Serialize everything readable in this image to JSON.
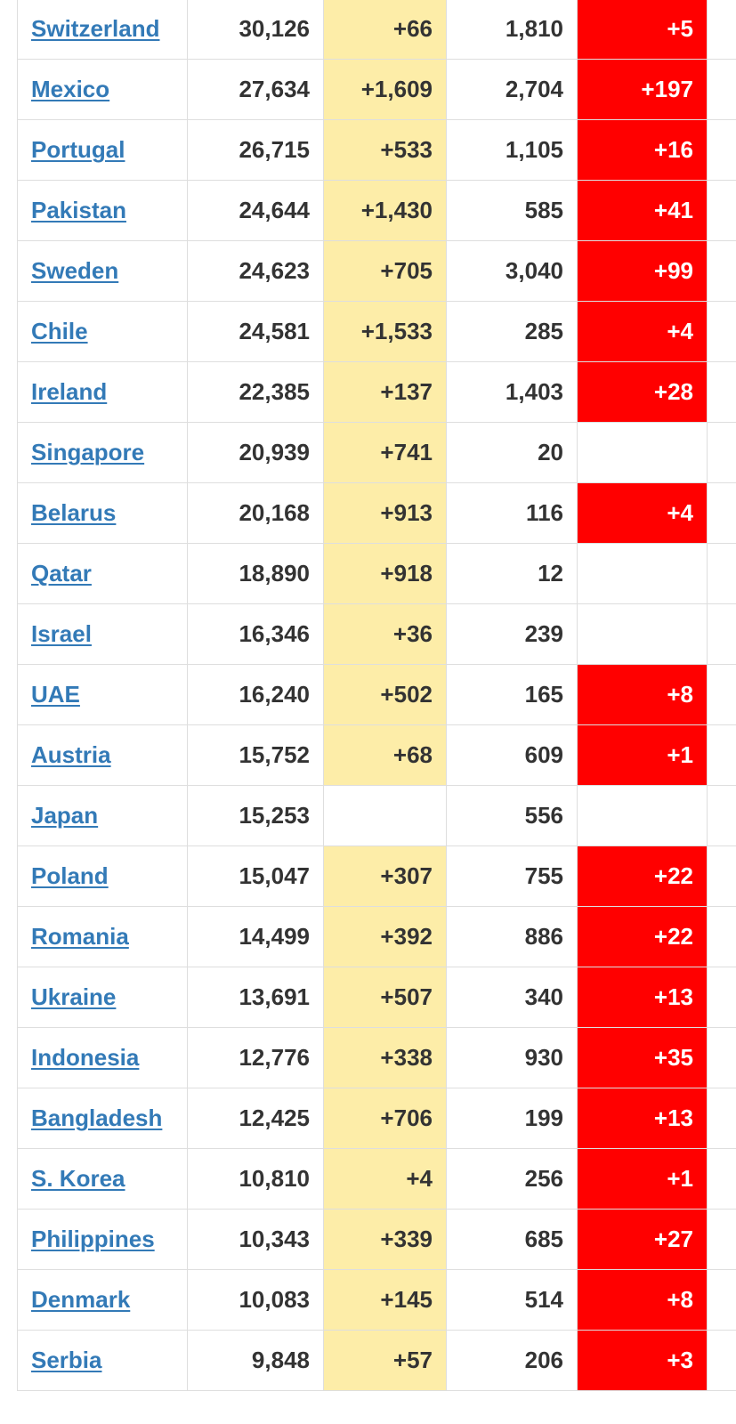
{
  "colors": {
    "link": "#337ab7",
    "text": "#333333",
    "new_cases_bg": "#fdeda8",
    "new_deaths_bg": "#ff0000",
    "new_deaths_text": "#ffffff",
    "border": "#dedede"
  },
  "table": {
    "rows": [
      {
        "country": "Switzerland",
        "total_cases": "30,126",
        "new_cases": "+66",
        "total_deaths": "1,810",
        "new_deaths": "+5"
      },
      {
        "country": "Mexico",
        "total_cases": "27,634",
        "new_cases": "+1,609",
        "total_deaths": "2,704",
        "new_deaths": "+197"
      },
      {
        "country": "Portugal",
        "total_cases": "26,715",
        "new_cases": "+533",
        "total_deaths": "1,105",
        "new_deaths": "+16"
      },
      {
        "country": "Pakistan",
        "total_cases": "24,644",
        "new_cases": "+1,430",
        "total_deaths": "585",
        "new_deaths": "+41"
      },
      {
        "country": "Sweden",
        "total_cases": "24,623",
        "new_cases": "+705",
        "total_deaths": "3,040",
        "new_deaths": "+99"
      },
      {
        "country": "Chile",
        "total_cases": "24,581",
        "new_cases": "+1,533",
        "total_deaths": "285",
        "new_deaths": "+4"
      },
      {
        "country": "Ireland",
        "total_cases": "22,385",
        "new_cases": "+137",
        "total_deaths": "1,403",
        "new_deaths": "+28"
      },
      {
        "country": "Singapore",
        "total_cases": "20,939",
        "new_cases": "+741",
        "total_deaths": "20",
        "new_deaths": ""
      },
      {
        "country": "Belarus",
        "total_cases": "20,168",
        "new_cases": "+913",
        "total_deaths": "116",
        "new_deaths": "+4"
      },
      {
        "country": "Qatar",
        "total_cases": "18,890",
        "new_cases": "+918",
        "total_deaths": "12",
        "new_deaths": ""
      },
      {
        "country": "Israel",
        "total_cases": "16,346",
        "new_cases": "+36",
        "total_deaths": "239",
        "new_deaths": ""
      },
      {
        "country": "UAE",
        "total_cases": "16,240",
        "new_cases": "+502",
        "total_deaths": "165",
        "new_deaths": "+8"
      },
      {
        "country": "Austria",
        "total_cases": "15,752",
        "new_cases": "+68",
        "total_deaths": "609",
        "new_deaths": "+1"
      },
      {
        "country": "Japan",
        "total_cases": "15,253",
        "new_cases": "",
        "total_deaths": "556",
        "new_deaths": ""
      },
      {
        "country": "Poland",
        "total_cases": "15,047",
        "new_cases": "+307",
        "total_deaths": "755",
        "new_deaths": "+22"
      },
      {
        "country": "Romania",
        "total_cases": "14,499",
        "new_cases": "+392",
        "total_deaths": "886",
        "new_deaths": "+22"
      },
      {
        "country": "Ukraine",
        "total_cases": "13,691",
        "new_cases": "+507",
        "total_deaths": "340",
        "new_deaths": "+13"
      },
      {
        "country": "Indonesia",
        "total_cases": "12,776",
        "new_cases": "+338",
        "total_deaths": "930",
        "new_deaths": "+35"
      },
      {
        "country": "Bangladesh",
        "total_cases": "12,425",
        "new_cases": "+706",
        "total_deaths": "199",
        "new_deaths": "+13"
      },
      {
        "country": "S. Korea",
        "total_cases": "10,810",
        "new_cases": "+4",
        "total_deaths": "256",
        "new_deaths": "+1"
      },
      {
        "country": "Philippines",
        "total_cases": "10,343",
        "new_cases": "+339",
        "total_deaths": "685",
        "new_deaths": "+27"
      },
      {
        "country": "Denmark",
        "total_cases": "10,083",
        "new_cases": "+145",
        "total_deaths": "514",
        "new_deaths": "+8"
      },
      {
        "country": "Serbia",
        "total_cases": "9,848",
        "new_cases": "+57",
        "total_deaths": "206",
        "new_deaths": "+3"
      }
    ]
  }
}
